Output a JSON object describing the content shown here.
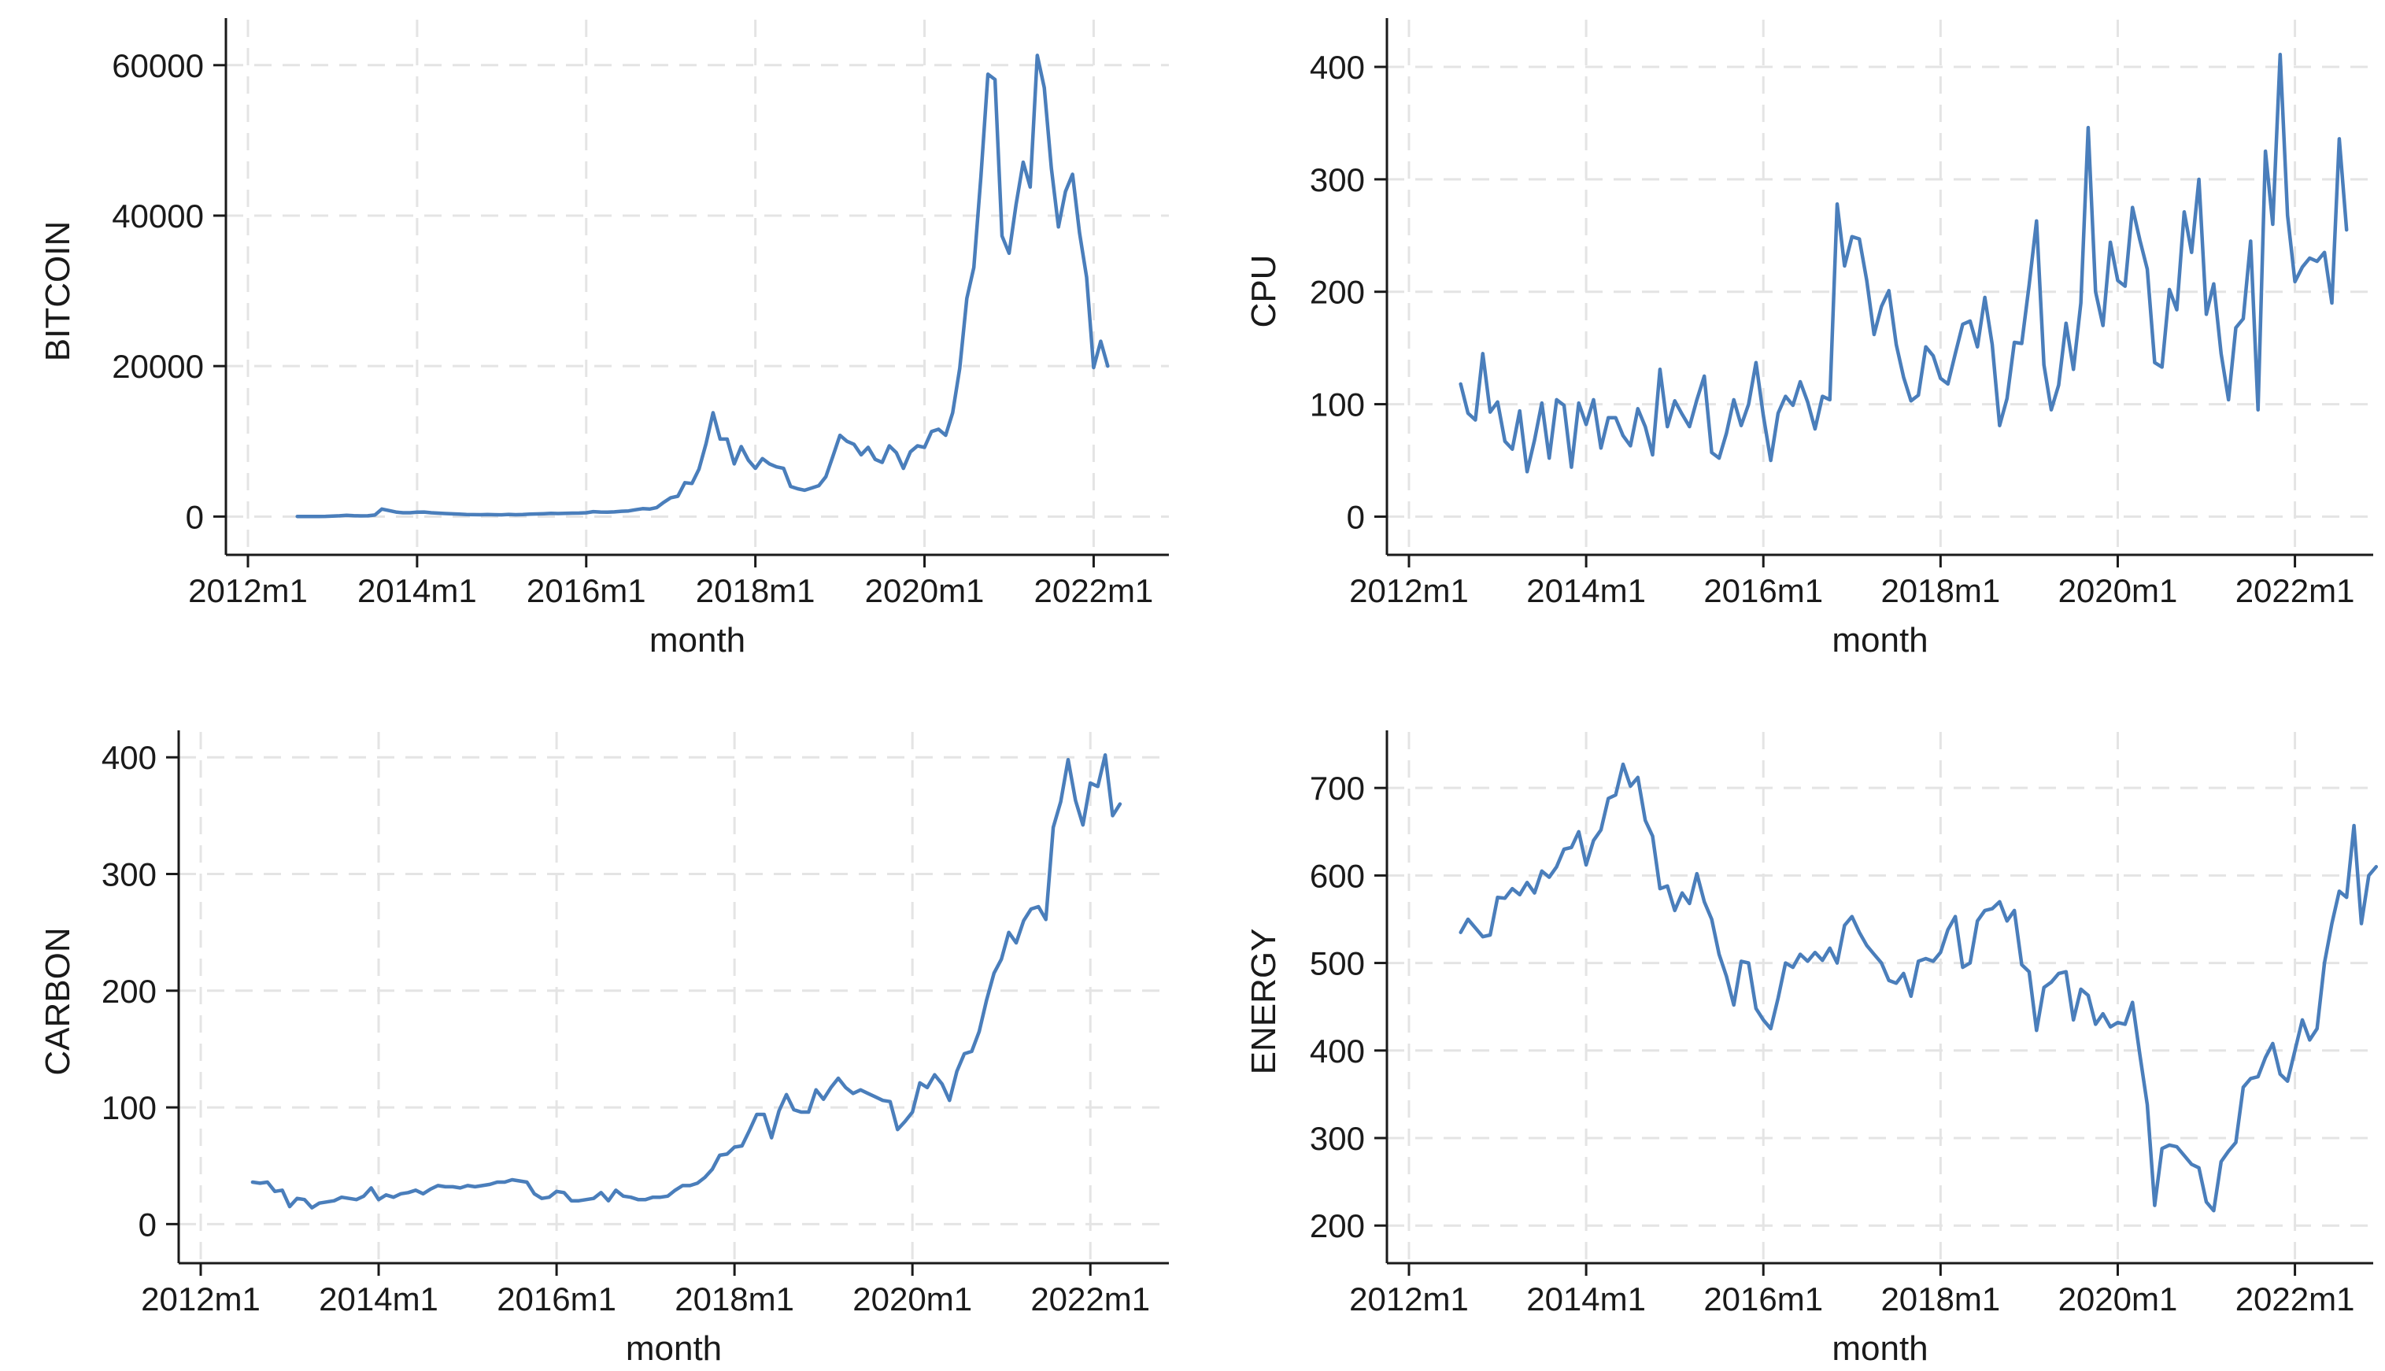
{
  "chart_data": [
    {
      "type": "line",
      "xlabel": "month",
      "ylabel": "BITCOIN",
      "x_start": "2012m8",
      "x_end": "2022m7",
      "xticks": [
        "2012m1",
        "2014m1",
        "2016m1",
        "2018m1",
        "2020m1",
        "2022m1"
      ],
      "xlim": [
        "2012m1",
        "2022m10"
      ],
      "yticks": [
        0,
        20000,
        40000,
        60000
      ],
      "ylim": [
        -3000,
        65000
      ],
      "grid": true,
      "color": "#4a7ebb",
      "series": [
        {
          "values": [
            10,
            11,
            12,
            13,
            20,
            60,
            100,
            160,
            110,
            90,
            100,
            200,
            1000,
            800,
            600,
            500,
            500,
            580,
            600,
            500,
            450,
            400,
            360,
            320,
            260,
            250,
            240,
            260,
            240,
            230,
            280,
            240,
            260,
            320,
            350,
            380,
            420,
            400,
            430,
            450,
            460,
            500,
            650,
            600,
            580,
            620,
            700,
            750,
            900,
            1050,
            1000,
            1200,
            1900,
            2500,
            2700,
            4500,
            4400,
            6300,
            9700,
            13800,
            10300,
            10300,
            7000,
            9300,
            7500,
            6400,
            7700,
            7000,
            6600,
            6400,
            4000,
            3700,
            3500,
            3800,
            4100,
            5300,
            8000,
            10800,
            10000,
            9600,
            8200,
            9200,
            7600,
            7200,
            9400,
            8500,
            6400,
            8600,
            9400,
            9200,
            11300,
            11600,
            10800,
            13800,
            19700,
            29000,
            33100,
            45200,
            58800,
            58100,
            37300,
            35000,
            41500,
            47100,
            43800,
            61300,
            57000,
            46300,
            38500,
            43200,
            45500,
            37700,
            31800,
            19800,
            23300,
            20000
          ]
        }
      ]
    },
    {
      "type": "line",
      "xlabel": "month",
      "ylabel": "CPU",
      "x_start": "2012m8",
      "x_end": "2022m7",
      "xticks": [
        "2012m1",
        "2014m1",
        "2016m1",
        "2018m1",
        "2020m1",
        "2022m1"
      ],
      "xlim": [
        "2012m1",
        "2022m10"
      ],
      "yticks": [
        0,
        100,
        200,
        300,
        400
      ],
      "ylim": [
        -20,
        435
      ],
      "grid": true,
      "color": "#4a7ebb",
      "series": [
        {
          "values": [
            118,
            92,
            86,
            145,
            93,
            102,
            67,
            60,
            94,
            40,
            68,
            101,
            52,
            104,
            99,
            44,
            101,
            82,
            104,
            61,
            88,
            88,
            72,
            63,
            96,
            80,
            55,
            131,
            80,
            103,
            91,
            80,
            104,
            125,
            57,
            52,
            74,
            104,
            81,
            100,
            137,
            90,
            50,
            92,
            107,
            99,
            120,
            102,
            78,
            107,
            104,
            278,
            223,
            249,
            247,
            210,
            162,
            187,
            201,
            153,
            124,
            103,
            108,
            151,
            143,
            123,
            118,
            145,
            171,
            174,
            151,
            195,
            153,
            81,
            105,
            155,
            154,
            206,
            263,
            135,
            95,
            117,
            172,
            131,
            190,
            346,
            200,
            170,
            244,
            210,
            205,
            275,
            246,
            220,
            137,
            133,
            202,
            184,
            271,
            235,
            300,
            180,
            207,
            145,
            104,
            168,
            176,
            245,
            95,
            325,
            260,
            411,
            268,
            209,
            222,
            230,
            227,
            235,
            190,
            336,
            255
          ]
        }
      ]
    },
    {
      "type": "line",
      "xlabel": "month",
      "ylabel": "CARBON",
      "x_start": "2012m8",
      "x_end": "2022m7",
      "xticks": [
        "2012m1",
        "2014m1",
        "2016m1",
        "2018m1",
        "2020m1",
        "2022m1"
      ],
      "xlim": [
        "2012m1",
        "2022m10"
      ],
      "yticks": [
        0,
        100,
        200,
        300,
        400
      ],
      "ylim": [
        -20,
        415
      ],
      "grid": true,
      "color": "#4a7ebb",
      "series": [
        {
          "values": [
            36,
            35,
            36,
            28,
            29,
            15,
            22,
            21,
            14,
            18,
            19,
            20,
            23,
            22,
            21,
            24,
            31,
            21,
            25,
            23,
            26,
            27,
            29,
            26,
            30,
            33,
            32,
            32,
            31,
            33,
            32,
            33,
            34,
            36,
            36,
            38,
            37,
            36,
            26,
            22,
            23,
            28,
            27,
            20,
            20,
            21,
            22,
            27,
            20,
            29,
            24,
            23,
            21,
            21,
            23,
            23,
            24,
            29,
            33,
            33,
            35,
            40,
            47,
            59,
            60,
            66,
            67,
            80,
            94,
            94,
            74,
            97,
            111,
            98,
            96,
            96,
            115,
            107,
            117,
            125,
            117,
            112,
            115,
            112,
            109,
            106,
            105,
            81,
            88,
            96,
            121,
            117,
            128,
            120,
            106,
            131,
            146,
            148,
            165,
            192,
            215,
            227,
            250,
            241,
            260,
            270,
            272,
            261,
            340,
            362,
            398,
            363,
            342,
            378,
            375,
            402,
            350,
            360
          ]
        }
      ]
    },
    {
      "type": "line",
      "xlabel": "month",
      "ylabel": "ENERGY",
      "x_start": "2012m8",
      "x_end": "2022m7",
      "xticks": [
        "2012m1",
        "2014m1",
        "2016m1",
        "2018m1",
        "2020m1",
        "2022m1"
      ],
      "xlim": [
        "2012m1",
        "2022m10"
      ],
      "yticks": [
        200,
        300,
        400,
        500,
        600,
        700
      ],
      "ylim": [
        175,
        755
      ],
      "grid": true,
      "color": "#4a7ebb",
      "series": [
        {
          "values": [
            535,
            550,
            540,
            530,
            532,
            575,
            574,
            585,
            578,
            592,
            580,
            605,
            598,
            610,
            630,
            632,
            650,
            612,
            640,
            652,
            688,
            692,
            727,
            702,
            712,
            663,
            645,
            585,
            588,
            560,
            580,
            568,
            602,
            570,
            550,
            510,
            485,
            452,
            502,
            500,
            448,
            435,
            425,
            460,
            500,
            495,
            510,
            502,
            512,
            503,
            517,
            500,
            543,
            553,
            535,
            520,
            510,
            500,
            480,
            477,
            488,
            462,
            502,
            505,
            502,
            512,
            538,
            553,
            495,
            500,
            548,
            560,
            562,
            570,
            548,
            560,
            498,
            490,
            423,
            472,
            478,
            488,
            490,
            435,
            470,
            463,
            430,
            442,
            427,
            432,
            430,
            455,
            395,
            338,
            223,
            288,
            292,
            290,
            280,
            270,
            266,
            227,
            217,
            273,
            285,
            295,
            358,
            368,
            370,
            392,
            408,
            373,
            365,
            400,
            435,
            412,
            425,
            500,
            545,
            582,
            575,
            657,
            545,
            600,
            610
          ]
        }
      ]
    }
  ]
}
